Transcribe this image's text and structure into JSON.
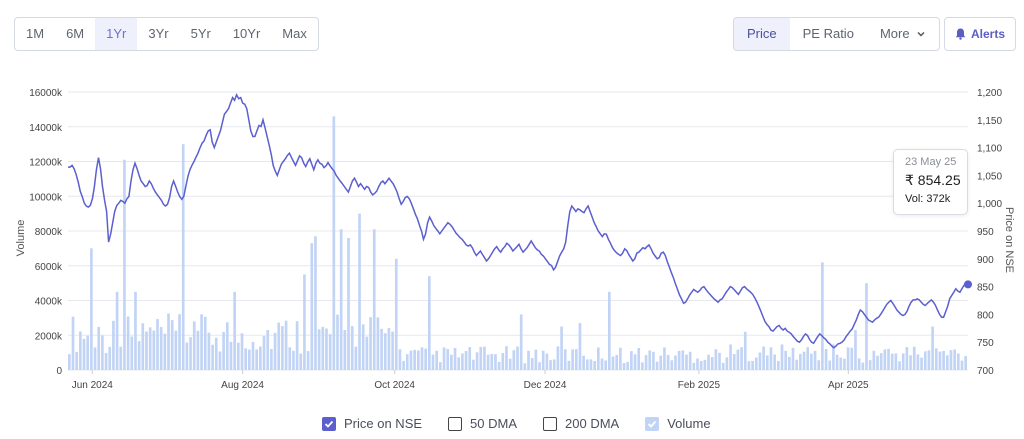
{
  "range_buttons": [
    "1M",
    "6M",
    "1Yr",
    "3Yr",
    "5Yr",
    "10Yr",
    "Max"
  ],
  "active_range": "1Yr",
  "view_buttons": {
    "price": "Price",
    "pe": "PE Ratio",
    "more": "More"
  },
  "alerts_label": "Alerts",
  "tooltip": {
    "date": "23 May 25",
    "price": "₹ 854.25",
    "volume": "Vol: 372k"
  },
  "legend": {
    "price": "Price on NSE",
    "dma50": "50 DMA",
    "dma200": "200 DMA",
    "volume": "Volume"
  },
  "colors": {
    "price_line": "#5b5fcf",
    "volume_bar": "#c2d4f5",
    "accent": "#5b5fcf"
  },
  "chart_data": {
    "type": "line",
    "ylabel_left": "Volume",
    "ylabel_right": "Price on NSE",
    "x_tick_labels": [
      "Jun 2024",
      "Aug 2024",
      "Oct 2024",
      "Dec 2024",
      "Feb 2025",
      "Apr 2025"
    ],
    "left_ticks": [
      "0",
      "2000k",
      "4000k",
      "6000k",
      "8000k",
      "10000k",
      "12000k",
      "14000k",
      "16000k"
    ],
    "right_ticks": [
      "700",
      "750",
      "800",
      "850",
      "900",
      "950",
      "1,000",
      "1,050",
      "1,100",
      "1,150",
      "1,200"
    ],
    "ylim_volume_k": [
      0,
      16000
    ],
    "ylim_price": [
      700,
      1200
    ],
    "grid": true,
    "price_series": [
      1065,
      1065,
      1068,
      1062,
      1052,
      1038,
      1022,
      1012,
      1000,
      995,
      993,
      996,
      1008,
      1030,
      1060,
      1082,
      1062,
      1030,
      1005,
      985,
      930,
      945,
      965,
      985,
      996,
      1000,
      1005,
      1003,
      1000,
      1008,
      1012,
      1040,
      1060,
      1072,
      1062,
      1050,
      1040,
      1035,
      1030,
      1032,
      1040,
      1035,
      1027,
      1020,
      1015,
      1010,
      1005,
      998,
      995,
      998,
      1010,
      1030,
      1040,
      1030,
      1020,
      1012,
      1007,
      1012,
      1030,
      1048,
      1060,
      1068,
      1075,
      1083,
      1090,
      1100,
      1108,
      1112,
      1122,
      1130,
      1132,
      1110,
      1100,
      1110,
      1120,
      1130,
      1145,
      1160,
      1165,
      1170,
      1180,
      1190,
      1185,
      1195,
      1188,
      1190,
      1180,
      1178,
      1170,
      1150,
      1130,
      1120,
      1120,
      1130,
      1140,
      1138,
      1150,
      1135,
      1120,
      1105,
      1088,
      1068,
      1058,
      1050,
      1060,
      1070,
      1075,
      1080,
      1086,
      1090,
      1082,
      1075,
      1068,
      1077,
      1085,
      1082,
      1072,
      1066,
      1074,
      1080,
      1070,
      1060,
      1072,
      1078,
      1072,
      1070,
      1064,
      1067,
      1073,
      1067,
      1062,
      1058,
      1050,
      1045,
      1040,
      1035,
      1030,
      1025,
      1020,
      1030,
      1040,
      1045,
      1038,
      1030,
      1035,
      1030,
      1025,
      1030,
      1028,
      1020,
      1015,
      1018,
      1022,
      1030,
      1037,
      1040,
      1035,
      1040,
      1045,
      1040,
      1035,
      1028,
      1020,
      1008,
      998,
      1003,
      1010,
      1012,
      1008,
      1000,
      990,
      980,
      972,
      960,
      950,
      935,
      945,
      965,
      975,
      968,
      960,
      955,
      950,
      945,
      950,
      955,
      960,
      965,
      962,
      958,
      952,
      946,
      942,
      938,
      935,
      930,
      925,
      923,
      925,
      920,
      912,
      906,
      910,
      914,
      908,
      902,
      896,
      900,
      906,
      912,
      918,
      922,
      916,
      912,
      918,
      922,
      928,
      925,
      920,
      914,
      918,
      922,
      926,
      918,
      912,
      916,
      920,
      926,
      932,
      926,
      920,
      916,
      914,
      908,
      905,
      900,
      895,
      890,
      888,
      880,
      885,
      895,
      905,
      912,
      918,
      930,
      960,
      985,
      995,
      990,
      985,
      990,
      988,
      985,
      983,
      990,
      995,
      985,
      975,
      965,
      958,
      950,
      945,
      940,
      945,
      944,
      935,
      928,
      920,
      915,
      911,
      908,
      906,
      910,
      918,
      915,
      908,
      902,
      896,
      900,
      910,
      912,
      916,
      920,
      918,
      922,
      925,
      918,
      910,
      905,
      900,
      902,
      910,
      912,
      906,
      895,
      885,
      875,
      866,
      855,
      845,
      835,
      828,
      820,
      822,
      828,
      835,
      840,
      845,
      842,
      840,
      843,
      848,
      850,
      845,
      840,
      836,
      832,
      828,
      825,
      822,
      826,
      828,
      834,
      840,
      845,
      850,
      848,
      844,
      840,
      836,
      842,
      848,
      850,
      846,
      843,
      840,
      836,
      830,
      823,
      815,
      806,
      797,
      788,
      782,
      778,
      772,
      770,
      774,
      778,
      780,
      775,
      772,
      775,
      770,
      768,
      765,
      760,
      756,
      752,
      750,
      754,
      760,
      765,
      762,
      755,
      750,
      748,
      754,
      760,
      765,
      762,
      758,
      755,
      750,
      747,
      743,
      740,
      743,
      747,
      748,
      750,
      754,
      760,
      765,
      770,
      774,
      782,
      790,
      800,
      808,
      805,
      800,
      795,
      790,
      788,
      786,
      790,
      793,
      795,
      800,
      806,
      812,
      818,
      822,
      825,
      820,
      814,
      808,
      804,
      800,
      798,
      800,
      806,
      815,
      822,
      826,
      826,
      828,
      826,
      822,
      818,
      816,
      820,
      823,
      826,
      822,
      816,
      808,
      800,
      795,
      795,
      805,
      815,
      828,
      834,
      840,
      846,
      842,
      840,
      846,
      852,
      856,
      854
    ]
  }
}
